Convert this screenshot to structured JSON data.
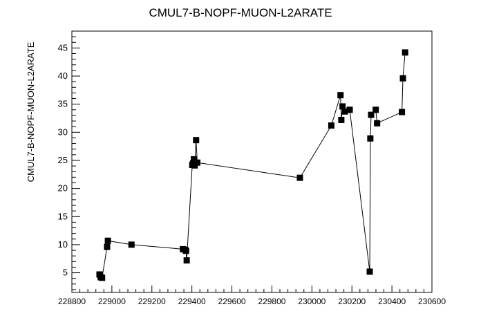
{
  "chart_data": {
    "type": "line",
    "title": "CMUL7-B-NOPF-MUON-L2ARATE",
    "xlabel": "",
    "ylabel": "CMUL7-B-NOPF-MUON-L2ARATE",
    "xlim": [
      228800,
      230600
    ],
    "ylim": [
      1.5,
      48
    ],
    "grid": false,
    "x_ticks": [
      228800,
      229000,
      229200,
      229400,
      229600,
      229800,
      230000,
      230200,
      230400,
      230600
    ],
    "y_ticks": [
      5,
      10,
      15,
      20,
      25,
      30,
      35,
      40,
      45
    ],
    "series": [
      {
        "marker": "square",
        "color": "#000000",
        "points": [
          {
            "x": 228938,
            "y": 4.7
          },
          {
            "x": 228944,
            "y": 4.2
          },
          {
            "x": 228951,
            "y": 4.1
          },
          {
            "x": 228976,
            "y": 9.6
          },
          {
            "x": 228980,
            "y": 10.7
          },
          {
            "x": 229098,
            "y": 10.0
          },
          {
            "x": 229355,
            "y": 9.2
          },
          {
            "x": 229366,
            "y": 9.1
          },
          {
            "x": 229371,
            "y": 8.9
          },
          {
            "x": 229374,
            "y": 7.2
          },
          {
            "x": 229402,
            "y": 24.2
          },
          {
            "x": 229406,
            "y": 24.5
          },
          {
            "x": 229410,
            "y": 25.2
          },
          {
            "x": 229414,
            "y": 24.1
          },
          {
            "x": 229421,
            "y": 28.6
          },
          {
            "x": 229427,
            "y": 24.6
          },
          {
            "x": 229940,
            "y": 21.9
          },
          {
            "x": 230097,
            "y": 31.2
          },
          {
            "x": 230143,
            "y": 36.6
          },
          {
            "x": 230147,
            "y": 32.2
          },
          {
            "x": 230153,
            "y": 34.6
          },
          {
            "x": 230165,
            "y": 33.7
          },
          {
            "x": 230189,
            "y": 34.0
          },
          {
            "x": 230289,
            "y": 5.2
          },
          {
            "x": 230292,
            "y": 28.9
          },
          {
            "x": 230296,
            "y": 33.1
          },
          {
            "x": 230319,
            "y": 34.0
          },
          {
            "x": 230326,
            "y": 31.6
          },
          {
            "x": 230450,
            "y": 33.6
          },
          {
            "x": 230455,
            "y": 39.6
          },
          {
            "x": 230466,
            "y": 44.2
          }
        ]
      }
    ]
  }
}
